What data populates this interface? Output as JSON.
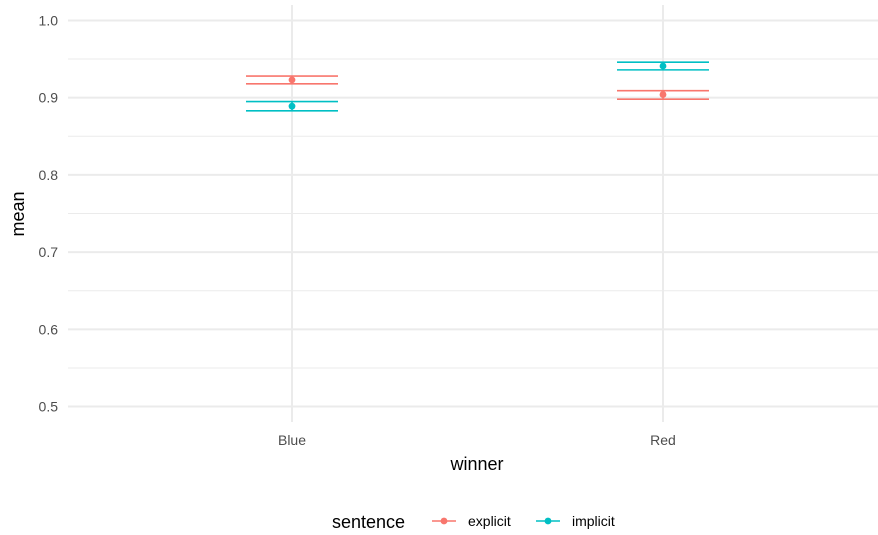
{
  "chart_data": {
    "type": "scatter",
    "title": "",
    "xlabel": "winner",
    "ylabel": "mean",
    "categories": [
      "Blue",
      "Red"
    ],
    "ylim": [
      0.48,
      1.02
    ],
    "yticks": [
      0.5,
      0.6,
      0.7,
      0.8,
      0.9,
      1.0
    ],
    "ytick_labels": [
      "0.5",
      "0.6",
      "0.7",
      "0.8",
      "0.9",
      "1.0"
    ],
    "grid": true,
    "legend": {
      "title": "sentence",
      "placement": "bottom"
    },
    "series": [
      {
        "name": "explicit",
        "color": "#F8766D",
        "values": [
          0.923,
          0.904
        ],
        "ci_low": [
          0.918,
          0.898
        ],
        "ci_high": [
          0.928,
          0.909
        ]
      },
      {
        "name": "implicit",
        "color": "#00BFC4",
        "values": [
          0.889,
          0.941
        ],
        "ci_low": [
          0.883,
          0.936
        ],
        "ci_high": [
          0.895,
          0.946
        ]
      }
    ]
  }
}
